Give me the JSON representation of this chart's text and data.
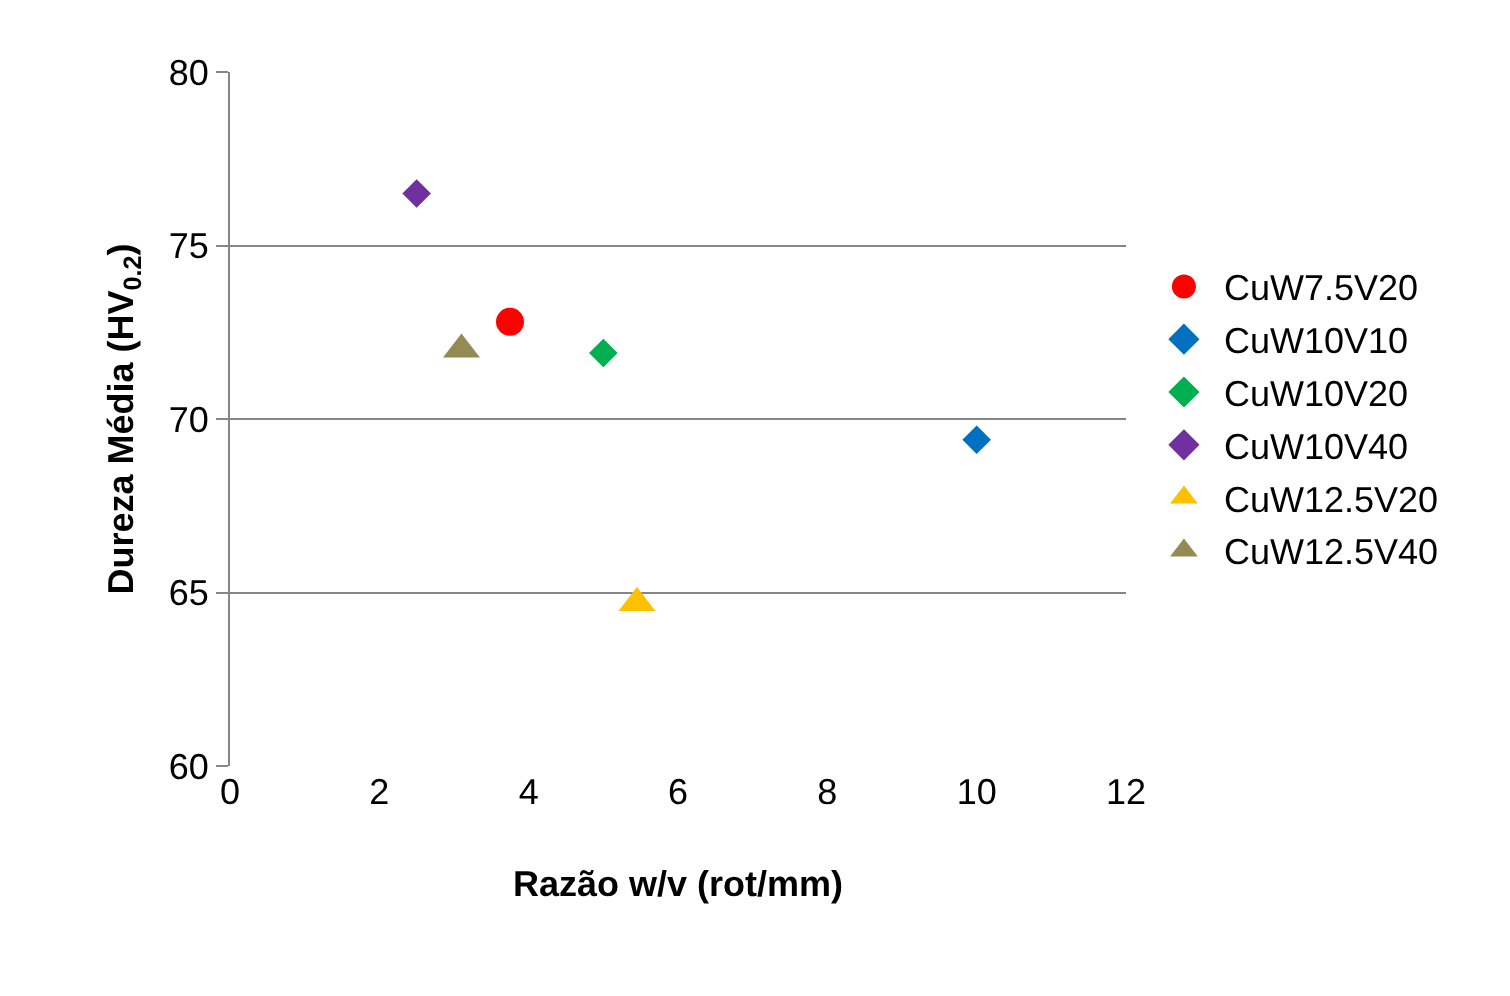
{
  "chart_data": {
    "type": "scatter",
    "xlabel": "Razão w/v (rot/mm)",
    "ylabel": "Dureza Média (HV$_{0.2}$)",
    "xlim": [
      0,
      12
    ],
    "xticks": [
      0,
      2,
      4,
      6,
      8,
      10,
      12
    ],
    "ylim": [
      60,
      80
    ],
    "yticks": [
      60,
      65,
      70,
      75,
      80
    ],
    "grid": "y",
    "legend": "right",
    "series": [
      {
        "name": "CuW7.5V20",
        "color": "#ff0000",
        "marker": "circle",
        "x": [
          3.75
        ],
        "values": [
          72.8
        ]
      },
      {
        "name": "CuW10V10",
        "color": "#0070c0",
        "marker": "diamond",
        "x": [
          10
        ],
        "values": [
          69.4
        ]
      },
      {
        "name": "CuW10V20",
        "color": "#00b050",
        "marker": "diamond",
        "x": [
          5
        ],
        "values": [
          71.9
        ]
      },
      {
        "name": "CuW10V40",
        "color": "#7030a0",
        "marker": "diamond",
        "x": [
          2.5
        ],
        "values": [
          76.5
        ]
      },
      {
        "name": "CuW12.5V20",
        "color": "#ffc000",
        "marker": "triangle",
        "x": [
          5.45
        ],
        "values": [
          64.7
        ]
      },
      {
        "name": "CuW12.5V40",
        "color": "#948a54",
        "marker": "triangle",
        "x": [
          3.1
        ],
        "values": [
          72.0
        ]
      }
    ]
  }
}
